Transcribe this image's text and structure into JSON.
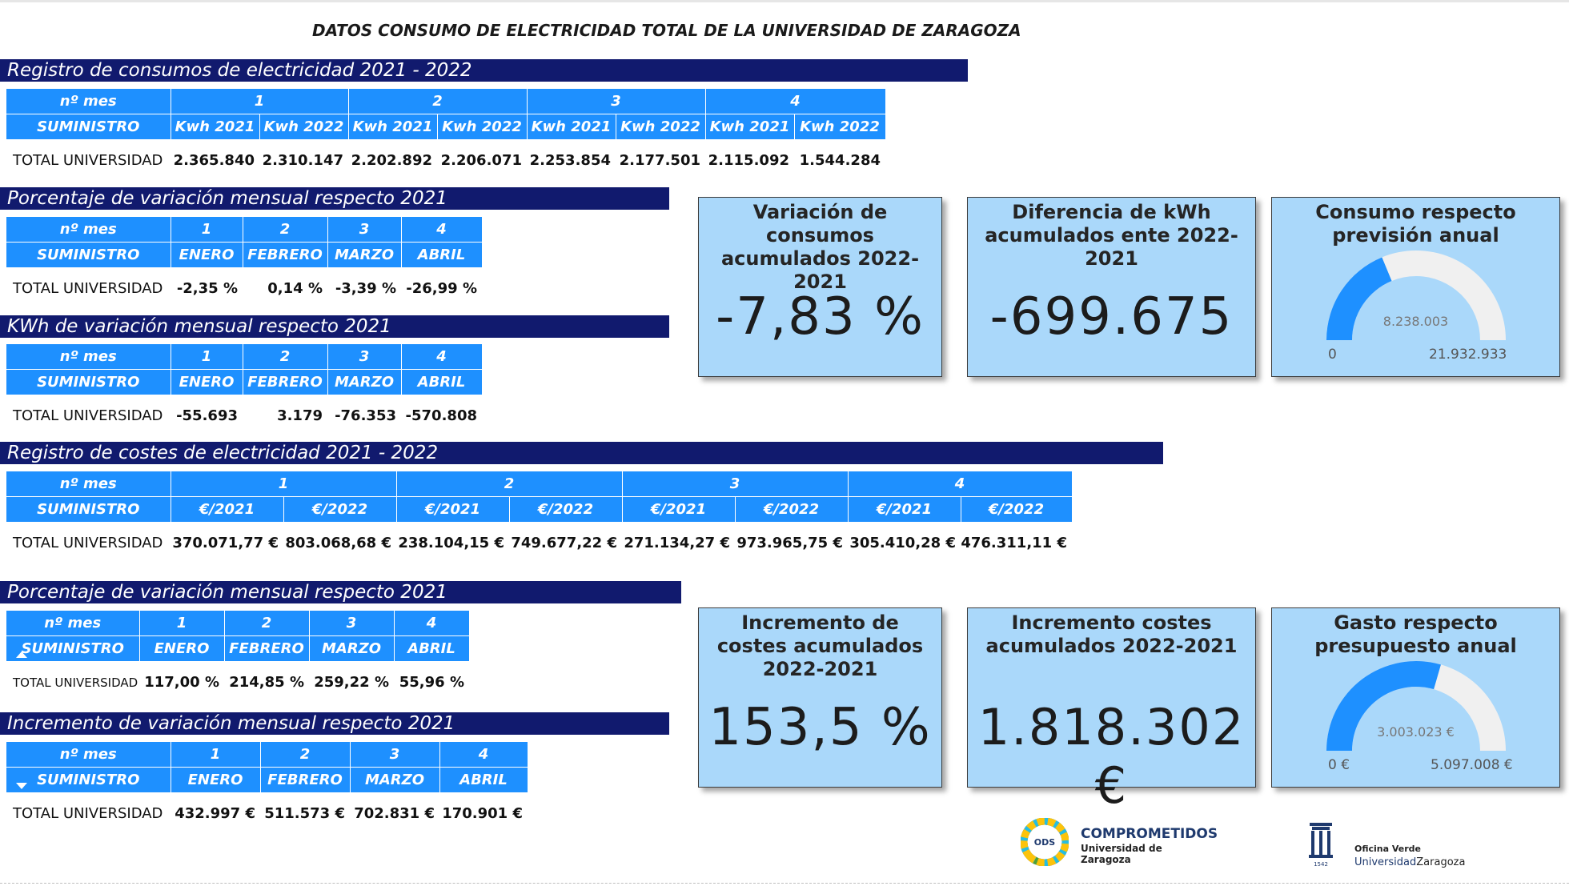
{
  "page_title": "DATOS CONSUMO DE ELECTRICIDAD TOTAL DE LA UNIVERSIDAD DE ZARAGOZA",
  "common": {
    "mes_label": "nº mes",
    "suministro_label": "SUMINISTRO",
    "row_label": "TOTAL UNIVERSIDAD"
  },
  "sections": {
    "consumos": {
      "title": "Registro de consumos de electricidad 2021 - 2022",
      "months": [
        "1",
        "2",
        "3",
        "4"
      ],
      "sub_headers": [
        "Kwh 2021",
        "Kwh 2022",
        "Kwh 2021",
        "Kwh 2022",
        "Kwh 2021",
        "Kwh 2022",
        "Kwh 2021",
        "Kwh 2022"
      ],
      "values": [
        "2.365.840",
        "2.310.147",
        "2.202.892",
        "2.206.071",
        "2.253.854",
        "2.177.501",
        "2.115.092",
        "1.544.284"
      ]
    },
    "pct_consumo": {
      "title": "Porcentaje de variación mensual respecto 2021",
      "months": [
        "1",
        "2",
        "3",
        "4"
      ],
      "month_names": [
        "ENERO",
        "FEBRERO",
        "MARZO",
        "ABRIL"
      ],
      "values": [
        "-2,35 %",
        "0,14 %",
        "-3,39 %",
        "-26,99 %"
      ]
    },
    "kwh_var": {
      "title": "KWh de variación mensual respecto 2021",
      "months": [
        "1",
        "2",
        "3",
        "4"
      ],
      "month_names": [
        "ENERO",
        "FEBRERO",
        "MARZO",
        "ABRIL"
      ],
      "values": [
        "-55.693",
        "3.179",
        "-76.353",
        "-570.808"
      ]
    },
    "costes": {
      "title": "Registro de costes de electricidad 2021 - 2022",
      "months": [
        "1",
        "2",
        "3",
        "4"
      ],
      "sub_headers": [
        "€/2021",
        "€/2022",
        "€/2021",
        "€/2022",
        "€/2021",
        "€/2022",
        "€/2021",
        "€/2022"
      ],
      "values": [
        "370.071,77 €",
        "803.068,68 €",
        "238.104,15 €",
        "749.677,22 €",
        "271.134,27 €",
        "973.965,75 €",
        "305.410,28 €",
        "476.311,11 €"
      ]
    },
    "pct_coste": {
      "title": "Porcentaje de variación mensual respecto 2021",
      "months": [
        "1",
        "2",
        "3",
        "4"
      ],
      "month_names": [
        "ENERO",
        "FEBRERO",
        "MARZO",
        "ABRIL"
      ],
      "values": [
        "117,00 %",
        "214,85 %",
        "259,22 %",
        "55,96 %"
      ]
    },
    "inc_coste": {
      "title": "Incremento de variación mensual respecto 2021",
      "months": [
        "1",
        "2",
        "3",
        "4"
      ],
      "month_names": [
        "ENERO",
        "FEBRERO",
        "MARZO",
        "ABRIL"
      ],
      "values": [
        "432.997 €",
        "511.573 €",
        "702.831 €",
        "170.901 €"
      ]
    }
  },
  "kpis": {
    "var_consumos": {
      "title": "Variación de consumos acumulados 2022-2021",
      "value": "-7,83 %"
    },
    "dif_kwh": {
      "title": "Diferencia de kWh acumulados ente 2022-2021",
      "value": "-699.675"
    },
    "consumo_prevision": {
      "title": "Consumo respecto previsión anual",
      "value_label": "8.238.003",
      "min_label": "0",
      "max_label": "21.932.933",
      "value": 8238003,
      "min": 0,
      "max": 21932933
    },
    "inc_costes_pct": {
      "title": "Incremento de costes acumulados 2022-2021",
      "value": "153,5 %"
    },
    "inc_costes_eur": {
      "title": "Incremento costes acumulados 2022-2021",
      "value": "1.818.302 €"
    },
    "gasto_presupuesto": {
      "title": "Gasto respecto presupuesto anual",
      "value_label": "3.003.023 €",
      "min_label": "0 €",
      "max_label": "5.097.008 €",
      "value": 3003023,
      "min": 0,
      "max": 5097008
    }
  },
  "colors": {
    "section_bar": "#111a6e",
    "table_header": "#1e90ff",
    "kpi_bg": "#aad8fa",
    "gauge_fill": "#1e90ff",
    "gauge_track": "#f0f0f0"
  },
  "logos": {
    "comprometidos": {
      "badge": "ODS",
      "line1": "COMPROMETIDOS",
      "line2": "Universidad de Zaragoza"
    },
    "oficina": {
      "year": "1542",
      "line1": "Oficina Verde",
      "line2a": "Universidad",
      "line2b": "Zaragoza"
    }
  }
}
